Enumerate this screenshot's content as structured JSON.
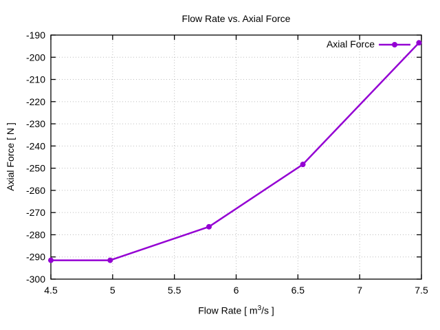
{
  "page": {
    "background": "#ffffff"
  },
  "chart_data": {
    "type": "line",
    "title": "Flow Rate vs. Axial Force",
    "xlabel": "Flow Rate [ m³/s ]",
    "xlabel_parts": {
      "pre": "Flow Rate [ m",
      "sup": "3",
      "post": "/s ]"
    },
    "ylabel": "Axial Force [ N ]",
    "xlim": [
      4.5,
      7.5
    ],
    "ylim": [
      -300,
      -190
    ],
    "xticks": [
      4.5,
      5,
      5.5,
      6,
      6.5,
      7,
      7.5
    ],
    "xtick_labels": [
      "4.5",
      "5",
      "5.5",
      "6",
      "6.5",
      "7",
      "7.5"
    ],
    "yticks": [
      -300,
      -290,
      -280,
      -270,
      -260,
      -250,
      -240,
      -230,
      -220,
      -210,
      -200,
      -190
    ],
    "ytick_labels": [
      "-300",
      "-290",
      "-280",
      "-270",
      "-260",
      "-250",
      "-240",
      "-230",
      "-220",
      "-210",
      "-200",
      "-190"
    ],
    "grid": true,
    "legend": {
      "position": "top-right",
      "entries": [
        "Axial Force"
      ]
    },
    "series": [
      {
        "name": "Axial Force",
        "color": "#9400d3",
        "marker": "circle",
        "x": [
          4.5,
          4.98,
          5.78,
          6.54,
          7.48
        ],
        "y": [
          -291.5,
          -291.5,
          -276.4,
          -248.3,
          -193.5
        ]
      }
    ],
    "styles": {
      "grid_color": "#bcbcbc",
      "frame_color": "#000000",
      "text_color": "#000000",
      "background": "#ffffff"
    }
  }
}
